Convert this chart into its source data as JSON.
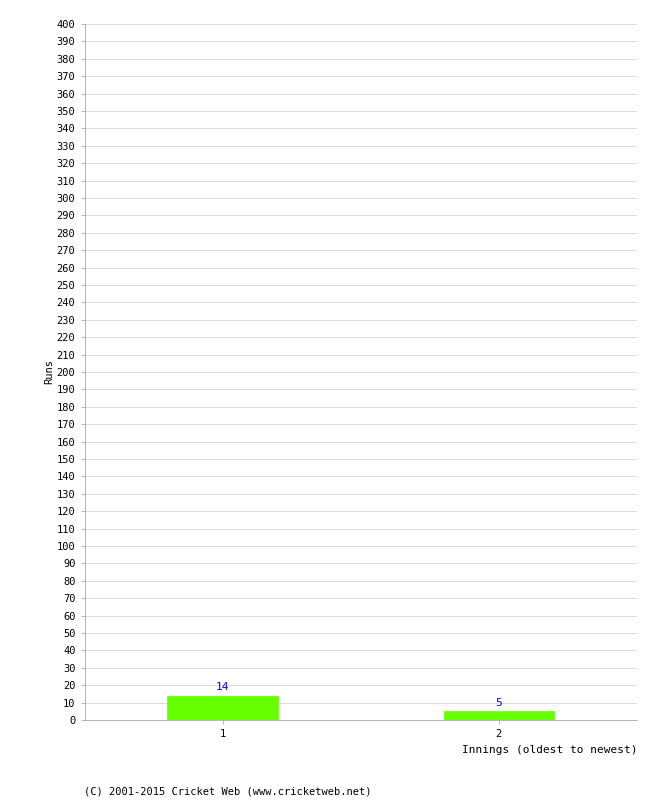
{
  "xlabel": "Innings (oldest to newest)",
  "ylabel": "Runs",
  "categories": [
    1,
    2
  ],
  "values": [
    14,
    5
  ],
  "bar_color": "#66ff00",
  "label_color": "blue",
  "ylim": [
    0,
    400
  ],
  "ytick_step": 10,
  "background_color": "#ffffff",
  "grid_color": "#cccccc",
  "footer": "(C) 2001-2015 Cricket Web (www.cricketweb.net)",
  "bar_width": 0.4,
  "label_fontsize": 8,
  "tick_fontsize": 7.5,
  "ylabel_fontsize": 7.5,
  "xlabel_fontsize": 8,
  "footer_fontsize": 7.5
}
